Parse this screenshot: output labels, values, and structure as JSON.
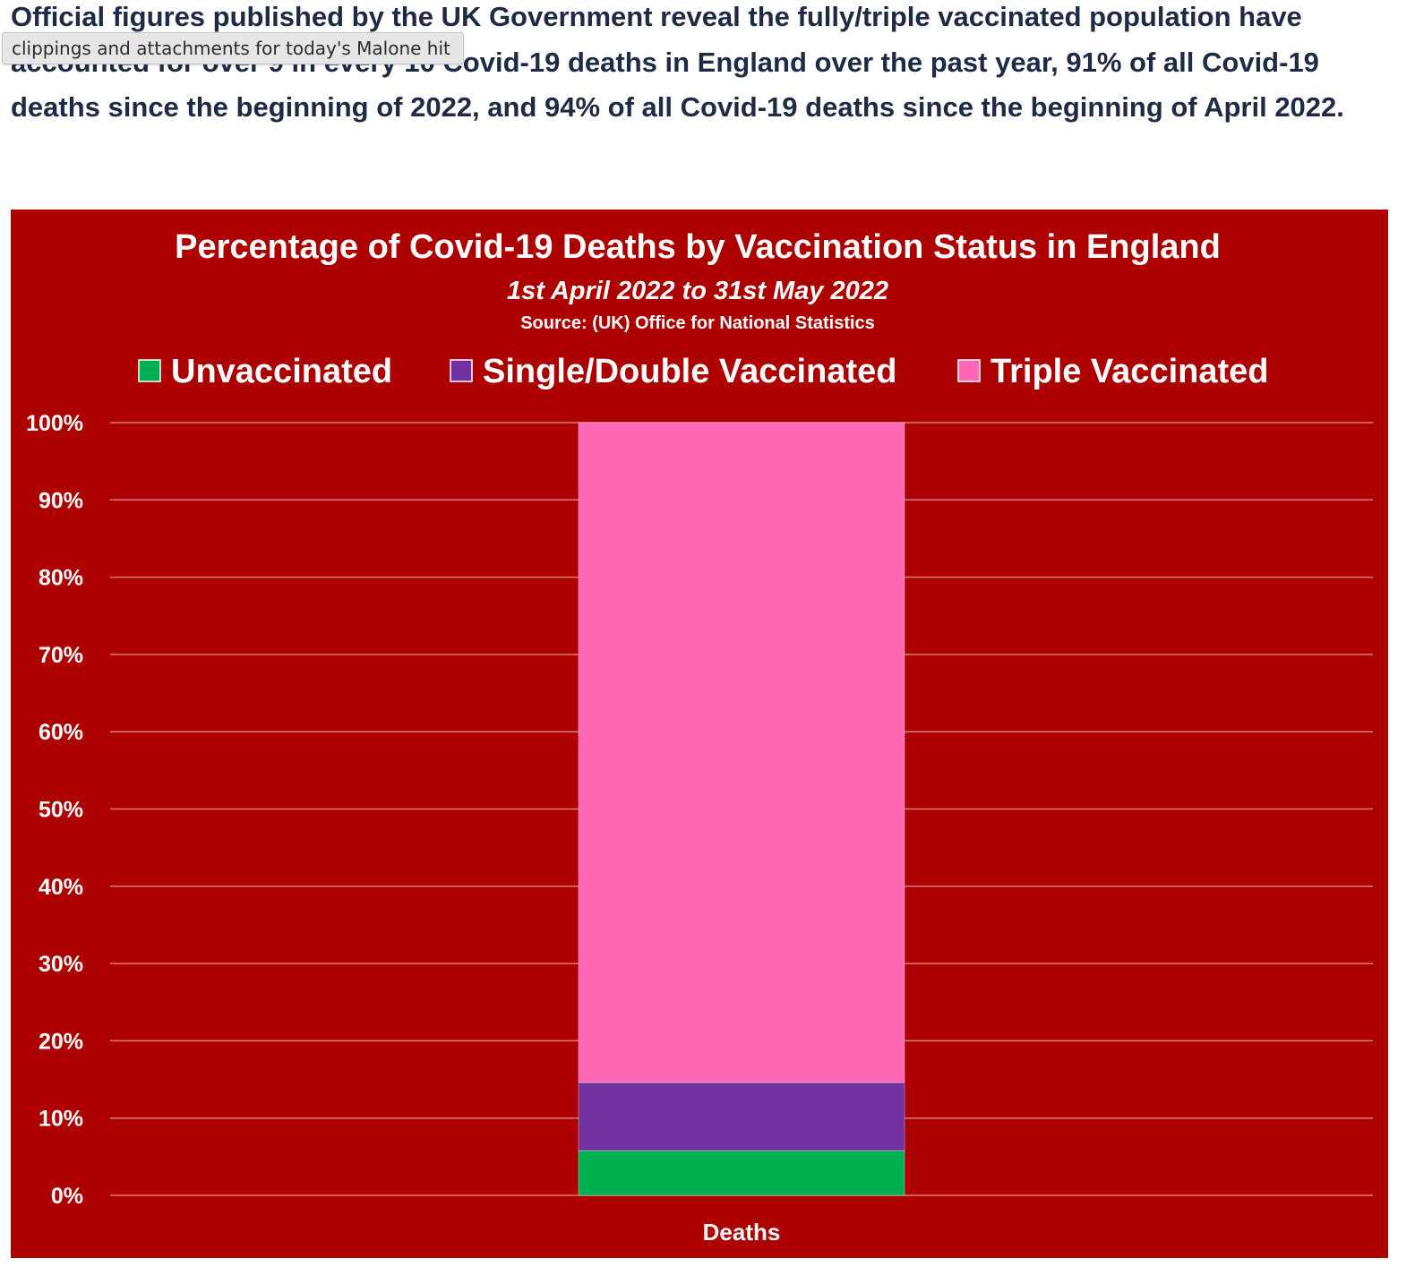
{
  "article": {
    "paragraph": "Official figures published by the UK Government reveal the fully/triple vaccinated population have accounted for over 9 in every 10 Covid-19 deaths in England over the past year, 91% of all Covid-19 deaths since the beginning of 2022, and 94% of all Covid-19 deaths since the beginning of April 2022."
  },
  "tooltip": {
    "text": "clippings and attachments for today's Malone hit"
  },
  "colors": {
    "background": "#AD0000",
    "grid": "#D87A7A",
    "text": "#FFFFFF",
    "unvaccinated": "#00B050",
    "single_double": "#7030A0",
    "triple": "#FF66B3"
  },
  "chart_data": {
    "type": "bar",
    "stacked": true,
    "title": "Percentage of Covid-19 Deaths by Vaccination Status in England",
    "subtitle": "1st April 2022 to 31st May 2022",
    "source": "Source: (UK) Office for National Statistics",
    "categories": [
      "Deaths"
    ],
    "series": [
      {
        "name": "Unvaccinated",
        "values": [
          5.8
        ],
        "color": "#00B050"
      },
      {
        "name": "Single/Double Vaccinated",
        "values": [
          8.8
        ],
        "color": "#7030A0"
      },
      {
        "name": "Triple Vaccinated",
        "values": [
          85.4
        ],
        "color": "#FF66B3"
      }
    ],
    "ylim": [
      0,
      100
    ],
    "yticks": [
      "0%",
      "10%",
      "20%",
      "30%",
      "40%",
      "50%",
      "60%",
      "70%",
      "80%",
      "90%",
      "100%"
    ],
    "grid": true,
    "legend": "top"
  }
}
